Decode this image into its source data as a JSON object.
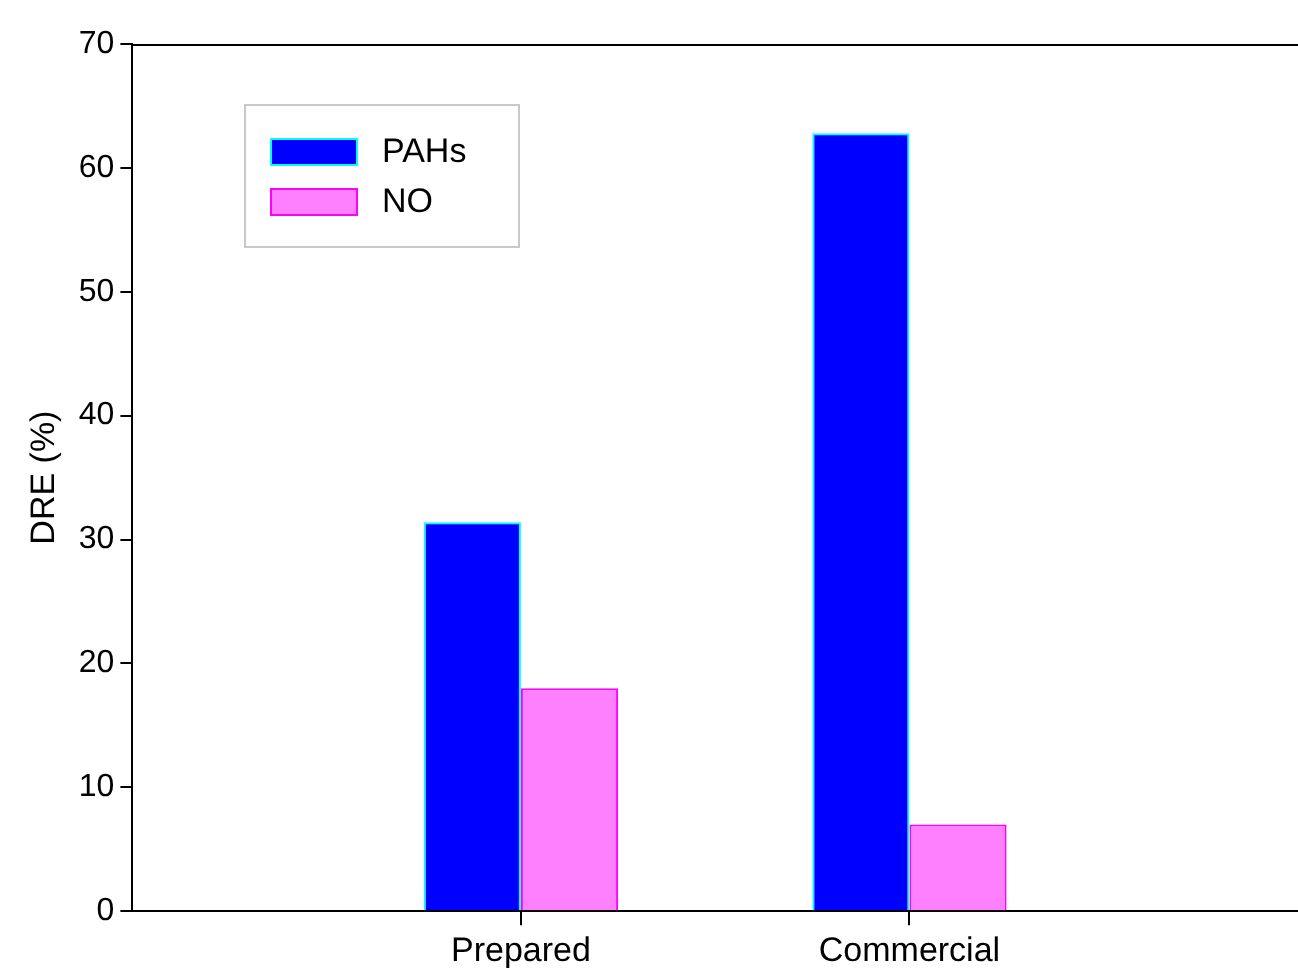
{
  "chart_data": {
    "type": "bar",
    "ylabel": "DRE (%)",
    "categories": [
      "Prepared",
      "Commercial"
    ],
    "series": [
      {
        "name": "PAHs",
        "color": "#0000ff",
        "values": [
          31.4,
          62.8
        ]
      },
      {
        "name": "NO",
        "color": "#ff80ff",
        "values": [
          18,
          7
        ]
      }
    ],
    "ylim": [
      0,
      70
    ],
    "yticks": [
      0,
      10,
      20,
      30,
      40,
      50,
      60,
      70
    ],
    "grid": false,
    "legend": "top left"
  }
}
